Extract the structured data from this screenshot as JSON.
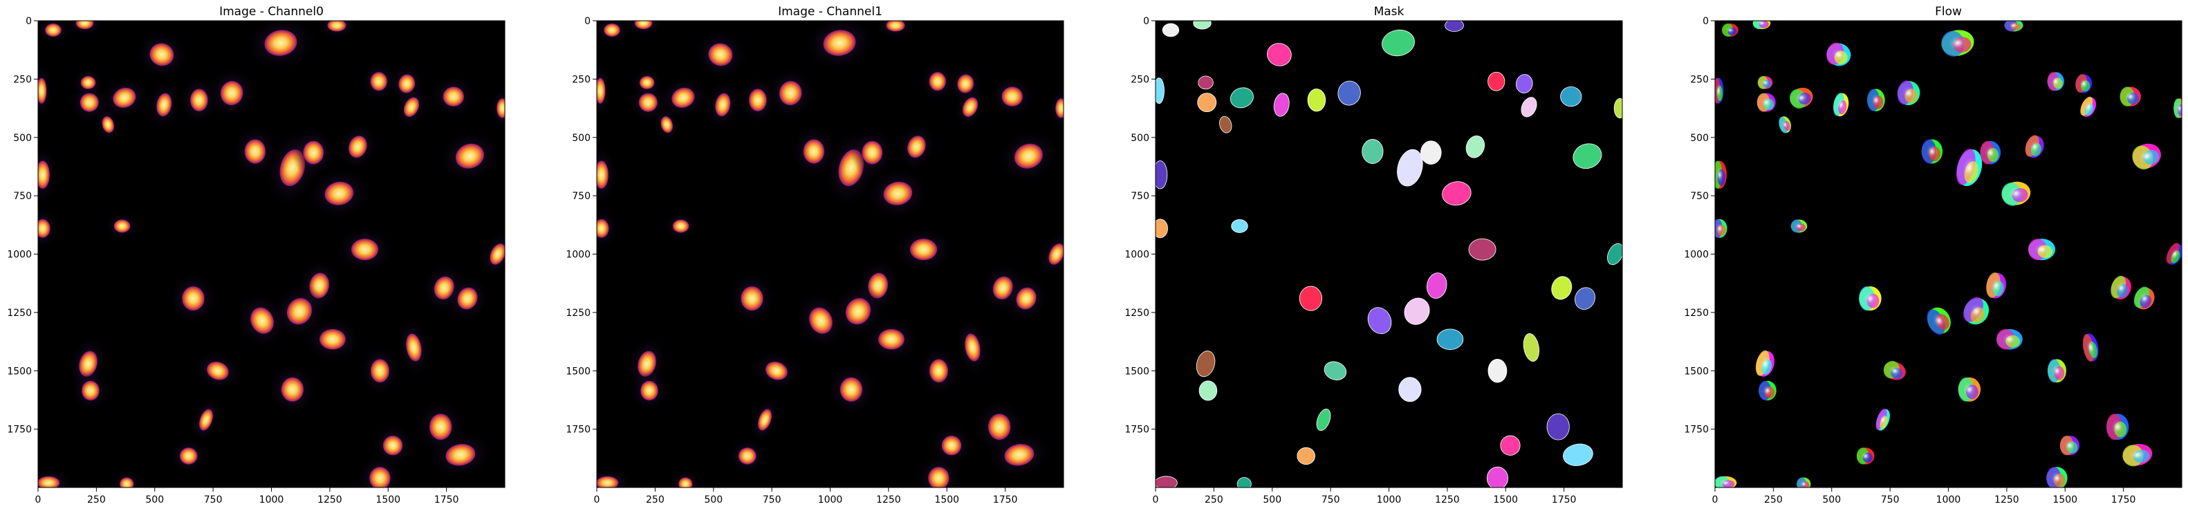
{
  "figure": {
    "panels": [
      {
        "id": "channel0",
        "title": "Image - Channel0",
        "style": "fire"
      },
      {
        "id": "channel1",
        "title": "Image - Channel1",
        "style": "fire"
      },
      {
        "id": "mask",
        "title": "Mask",
        "style": "mask"
      },
      {
        "id": "flow",
        "title": "Flow",
        "style": "flow"
      }
    ],
    "x_ticks": [
      "0",
      "250",
      "500",
      "750",
      "1000",
      "1250",
      "1500",
      "1750"
    ],
    "y_ticks": [
      "0",
      "250",
      "500",
      "750",
      "1000",
      "1250",
      "1500",
      "1750"
    ],
    "image_extent": [
      0,
      2000
    ],
    "colors": {
      "background": "#ffffff",
      "image_background": "#000000",
      "nucleus_outer": "#7a1c6e",
      "nucleus_mid": "#e8542a",
      "nucleus_core": "#fce37a",
      "cytoplasm_glow": "#1b0a2e"
    }
  }
}
